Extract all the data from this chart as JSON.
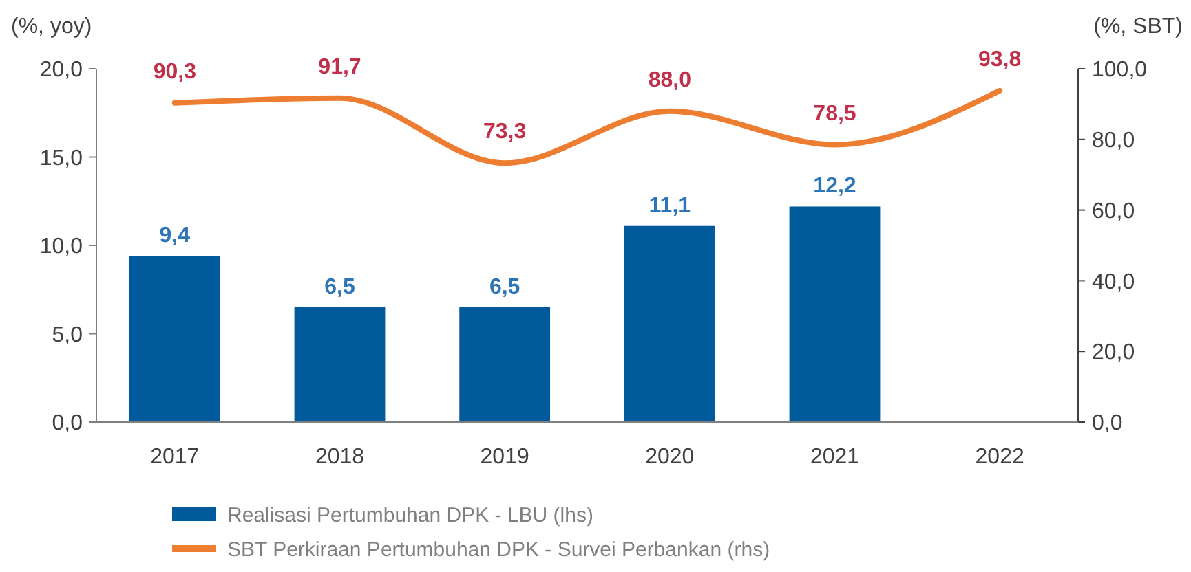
{
  "chart_data": {
    "type": "bar",
    "ylabel": "(%, yoy)",
    "y2label": "(%, SBT)",
    "categories": [
      "2017",
      "2018",
      "2019",
      "2020",
      "2021",
      "2022"
    ],
    "series": [
      {
        "name": "Realisasi Pertumbuhan DPK - LBU (lhs)",
        "color": "#005a9c",
        "values": [
          9.4,
          6.5,
          6.5,
          11.1,
          12.2,
          null
        ],
        "value_labels": [
          "9,4",
          "6,5",
          "6,5",
          "11,1",
          "12,2",
          null
        ]
      },
      {
        "name": "SBT Perkiraan Pertumbuhan DPK - Survei Perbankan (rhs)",
        "type": "line",
        "axis": "y2",
        "color": "#ed7d31",
        "values": [
          90.3,
          91.7,
          73.3,
          88.0,
          78.5,
          93.8
        ],
        "value_labels": [
          "90,3",
          "91,7",
          "73,3",
          "88,0",
          "78,5",
          "93,8"
        ]
      }
    ],
    "ylim": [
      0,
      20
    ],
    "yticks": [
      {
        "value": 0,
        "label": "0,0"
      },
      {
        "value": 5,
        "label": "5,0"
      },
      {
        "value": 10,
        "label": "10,0"
      },
      {
        "value": 15,
        "label": "15,0"
      },
      {
        "value": 20,
        "label": "20,0"
      }
    ],
    "y2lim": [
      0,
      100
    ],
    "y2ticks": [
      {
        "value": 0,
        "label": "0,0"
      },
      {
        "value": 20,
        "label": "20,0"
      },
      {
        "value": 40,
        "label": "40,0"
      },
      {
        "value": 60,
        "label": "60,0"
      },
      {
        "value": 80,
        "label": "80,0"
      },
      {
        "value": 100,
        "label": "100,0"
      }
    ],
    "legend": "bottom left",
    "marker": "none",
    "line_style": "solid",
    "grid": false
  }
}
